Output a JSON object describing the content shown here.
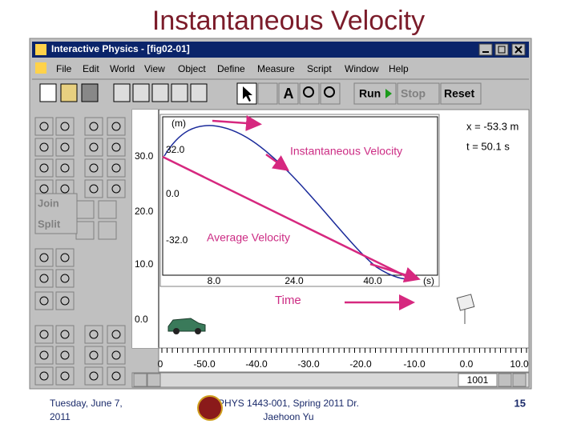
{
  "slide": {
    "title": "Instantaneous Velocity",
    "footer_date": [
      "Tuesday, June 7,",
      "2011"
    ],
    "footer_course": [
      "PHYS 1443-001, Spring 2011 Dr.",
      "Jaehoon Yu"
    ],
    "page_number": "15"
  },
  "window": {
    "title": "Interactive Physics - [fig02-01]",
    "menu": [
      "File",
      "Edit",
      "World",
      "View",
      "Object",
      "Define",
      "Measure",
      "Script",
      "Window",
      "Help"
    ],
    "toolbar": {
      "run": "Run",
      "stop": "Stop",
      "reset": "Reset"
    },
    "palette": {
      "join": "Join",
      "split": "Split"
    },
    "graph": {
      "y_unit": "(m)",
      "y_labels": [
        "32.0",
        "0.0",
        "-32.0"
      ],
      "x_labels": [
        "8.0",
        "24.0",
        "40.0"
      ],
      "x_unit": "(s)"
    },
    "readouts": [
      "x = -53.3 m",
      "t =  50.1 s"
    ],
    "rulers": {
      "vertical": [
        "30.0",
        "20.0",
        "10.0",
        "0.0"
      ],
      "horizontal": [
        "0",
        "-50.0",
        "-40.0",
        "-30.0",
        "-20.0",
        "-10.0",
        "0.0",
        "10.0"
      ]
    },
    "frame": "1001"
  },
  "annotations": {
    "instantaneous": "Instantaneous Velocity",
    "average": "Average Velocity",
    "time": "Time"
  }
}
